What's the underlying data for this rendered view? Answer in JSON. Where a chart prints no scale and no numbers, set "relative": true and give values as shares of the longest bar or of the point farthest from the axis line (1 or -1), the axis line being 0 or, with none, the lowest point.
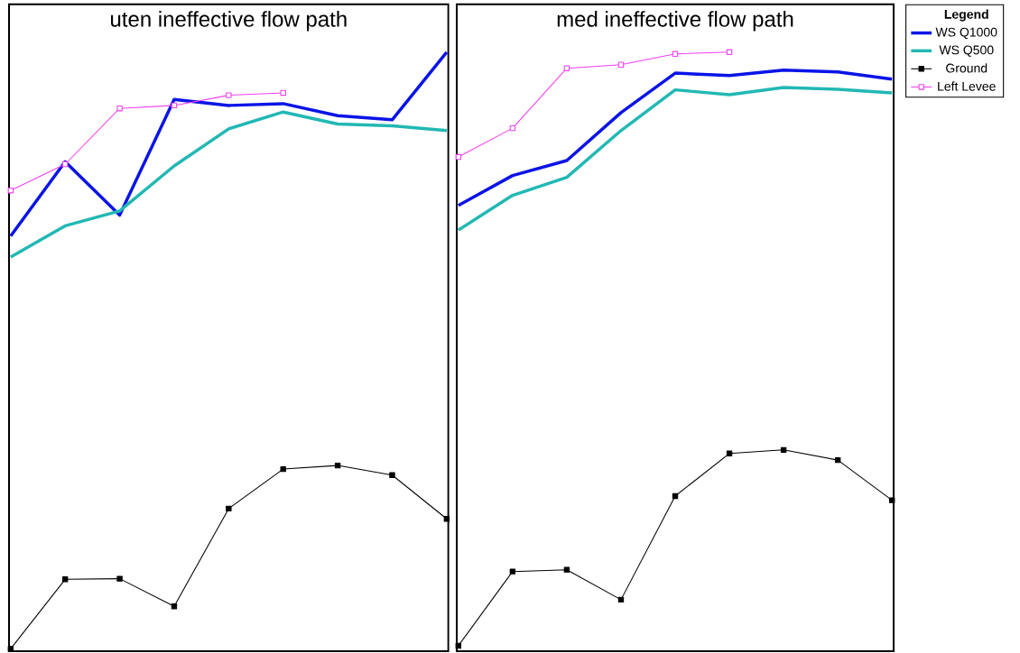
{
  "chart_data": [
    {
      "type": "line",
      "title": "uten ineffective flow path",
      "relative": true,
      "tick_labels": false,
      "categories": [
        null,
        null,
        null,
        null,
        null,
        null,
        null,
        null,
        null
      ],
      "series": [
        {
          "color": "#0a14e6",
          "marker": "none",
          "values": [
            0.693,
            0.817,
            0.728,
            0.921,
            0.911,
            0.914,
            0.894,
            0.887,
            1
          ]
        },
        {
          "color": "#22b8b4",
          "marker": "none",
          "values": [
            0.658,
            0.71,
            0.735,
            0.81,
            0.872,
            0.9,
            0.88,
            0.877,
            0.869
          ]
        },
        {
          "color": "#000000",
          "marker": "square",
          "values": [
            0.004,
            0.12,
            0.121,
            0.075,
            0.238,
            0.304,
            0.31,
            0.294,
            0.221
          ]
        },
        {
          "color": "#f040f0",
          "marker": "square",
          "values": [
            0.769,
            0.813,
            0.906,
            0.911,
            0.928,
            0.932,
            null,
            null,
            null
          ]
        }
      ]
    },
    {
      "type": "line",
      "title": "med ineffective flow path",
      "relative": true,
      "tick_labels": false,
      "categories": [
        null,
        null,
        null,
        null,
        null,
        null,
        null,
        null,
        null
      ],
      "legend": "right",
      "legend_title": "Legend",
      "series": [
        {
          "name": "WS  Q1000",
          "color": "#0a14e6",
          "marker": "none",
          "values": [
            0.744,
            0.794,
            0.819,
            0.899,
            0.965,
            0.961,
            0.97,
            0.967,
            0.955
          ]
        },
        {
          "name": "WS  Q500",
          "color": "#22b8b4",
          "marker": "none",
          "values": [
            0.703,
            0.761,
            0.791,
            0.869,
            0.937,
            0.929,
            0.941,
            0.938,
            0.932
          ]
        },
        {
          "name": "Ground",
          "color": "#000000",
          "marker": "square",
          "values": [
            0.009,
            0.133,
            0.136,
            0.086,
            0.259,
            0.33,
            0.336,
            0.319,
            0.252
          ]
        },
        {
          "name": "Left Levee",
          "color": "#f040f0",
          "marker": "square",
          "values": [
            0.825,
            0.873,
            0.973,
            0.979,
            0.997,
            1,
            null,
            null,
            null
          ]
        }
      ]
    }
  ]
}
